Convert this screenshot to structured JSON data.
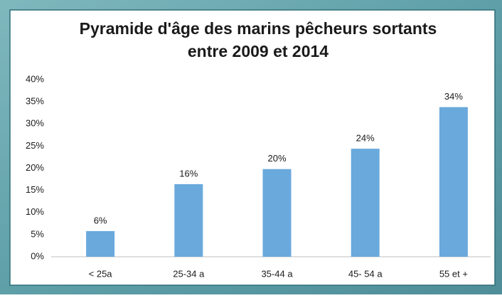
{
  "chart_data": {
    "type": "bar",
    "title": [
      "Pyramide d'âge des marins pêcheurs sortants",
      "entre 2009 et 2014"
    ],
    "categories": [
      "< 25a",
      "25-34 a",
      "35-44 a",
      "45- 54 a",
      "55 et +"
    ],
    "values": [
      5.8,
      16.4,
      19.8,
      24.4,
      33.8
    ],
    "value_labels": [
      "6%",
      "16%",
      "20%",
      "24%",
      "34%"
    ],
    "color": "#6aa9dc",
    "ylim": [
      0,
      40
    ],
    "yticks": [
      {
        "value": 0,
        "label": "0%"
      },
      {
        "value": 5,
        "label": "5%"
      },
      {
        "value": 10,
        "label": "10%"
      },
      {
        "value": 15,
        "label": "15%"
      },
      {
        "value": 20,
        "label": "20%"
      },
      {
        "value": 25,
        "label": "25%"
      },
      {
        "value": 30,
        "label": "30%"
      },
      {
        "value": 35,
        "label": "35%"
      },
      {
        "value": 40,
        "label": "40%"
      }
    ],
    "grid": false
  }
}
